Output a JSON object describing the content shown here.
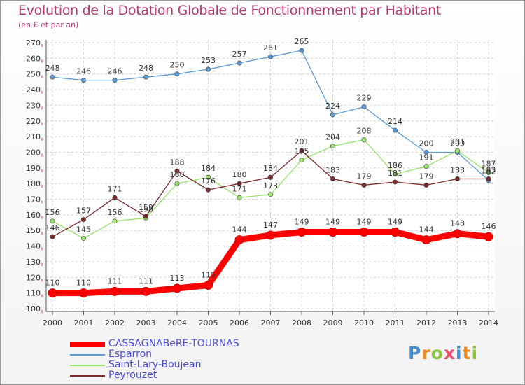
{
  "header": {
    "title": "Evolution de la Dotation Globale de Fonctionnement par Habitant",
    "subtitle": "(en € et par an)"
  },
  "chart_data": {
    "type": "line",
    "title": "Evolution de la Dotation Globale de Fonctionnement par Habitant",
    "subtitle": "(en € et par an)",
    "x": [
      "2000",
      "2001",
      "2002",
      "2003",
      "2004",
      "2005",
      "2006",
      "2007",
      "2008",
      "2009",
      "2010",
      "2011",
      "2012",
      "2013",
      "2014"
    ],
    "ylim": [
      100,
      270
    ],
    "yticks": [
      100,
      110,
      120,
      130,
      140,
      150,
      160,
      170,
      180,
      190,
      200,
      210,
      220,
      230,
      240,
      250,
      260,
      270
    ],
    "grid": "dashed horizontal and vertical",
    "legend_position": "bottom-left",
    "series": [
      {
        "name": "CASSAGNABèRE-TOURNAS",
        "color": "#ff0000",
        "values": [
          110,
          110,
          111,
          111,
          113,
          115,
          144,
          147,
          149,
          149,
          149,
          149,
          144,
          148,
          146
        ]
      },
      {
        "name": "Esparron",
        "color": "#5b9bd5",
        "values": [
          248,
          246,
          246,
          248,
          250,
          253,
          257,
          261,
          265,
          224,
          229,
          214,
          200,
          200,
          182
        ]
      },
      {
        "name": "Saint-Lary-Boujean",
        "color": "#99e26b",
        "values": [
          156,
          145,
          156,
          158,
          180,
          184,
          171,
          173,
          195,
          204,
          208,
          186,
          191,
          201,
          187
        ]
      },
      {
        "name": "Peyrouzet",
        "color": "#7a2a2a",
        "values": [
          146,
          157,
          171,
          159,
          188,
          176,
          180,
          184,
          201,
          183,
          179,
          181,
          179,
          183,
          183
        ]
      }
    ]
  },
  "legend": {
    "items": [
      {
        "label": "CASSAGNABeRE-TOURNAS"
      },
      {
        "label": "Esparron"
      },
      {
        "label": "Saint-Lary-Boujean"
      },
      {
        "label": "Peyrouzet"
      }
    ]
  },
  "logo": {
    "text": "Proxiti",
    "colors": [
      "#4a8fd0",
      "#f28c1e",
      "#8bc53f",
      "#e84f6b",
      "#4a8fd0",
      "#f28c1e",
      "#8bc53f"
    ]
  }
}
